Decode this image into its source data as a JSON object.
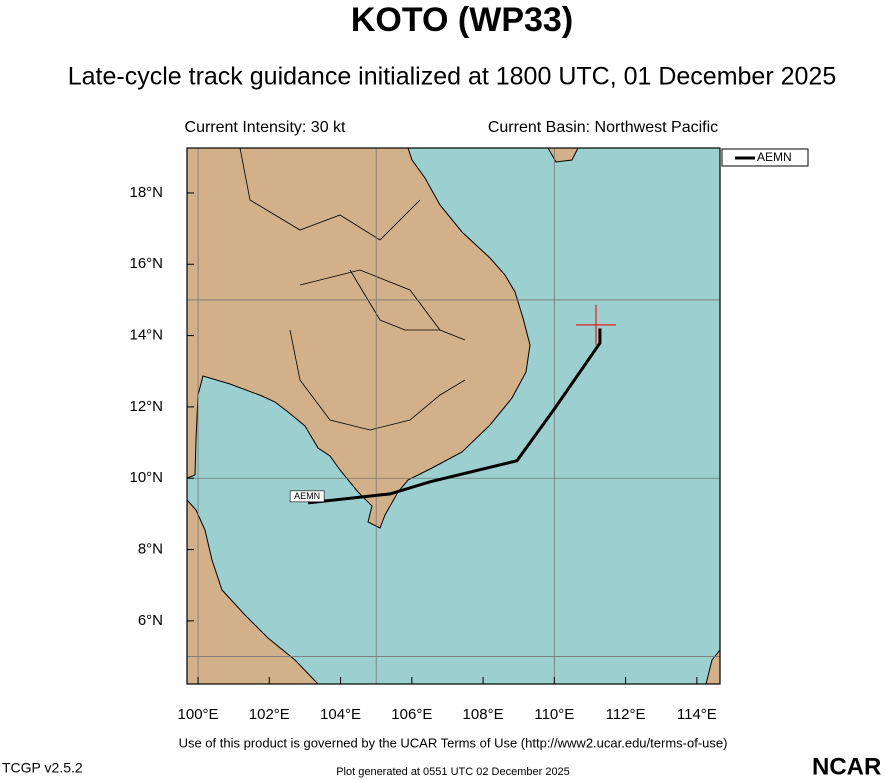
{
  "header": {
    "title": "KOTO (WP33)",
    "subtitle": "Late-cycle track guidance initialized at 1800 UTC, 01 December 2025"
  },
  "info": {
    "intensity": "Current Intensity: 30 kt",
    "basin": "Current Basin: Northwest Pacific"
  },
  "map": {
    "lon_range": [
      99.69,
      114.65
    ],
    "lat_range": [
      4.23,
      19.26
    ],
    "lon_ticks": [
      {
        "value": 100,
        "label": "100°E"
      },
      {
        "value": 102,
        "label": "102°E"
      },
      {
        "value": 104,
        "label": "104°E"
      },
      {
        "value": 106,
        "label": "106°E"
      },
      {
        "value": 108,
        "label": "108°E"
      },
      {
        "value": 110,
        "label": "110°E"
      },
      {
        "value": 112,
        "label": "112°E"
      },
      {
        "value": 114,
        "label": "114°E"
      }
    ],
    "lat_ticks": [
      {
        "value": 6,
        "label": "6°N"
      },
      {
        "value": 8,
        "label": "8°N"
      },
      {
        "value": 10,
        "label": "10°N"
      },
      {
        "value": 12,
        "label": "12°N"
      },
      {
        "value": 14,
        "label": "14°N"
      },
      {
        "value": 16,
        "label": "16°N"
      },
      {
        "value": 18,
        "label": "18°N"
      }
    ],
    "lon_grid": [
      100,
      105,
      110
    ],
    "lat_grid": [
      5,
      10,
      15
    ],
    "track": {
      "name": "AEMN",
      "lon": [
        103.09,
        105.39,
        106.51,
        108.95,
        110.02,
        111.28,
        111.28
      ],
      "lat": [
        9.31,
        9.56,
        9.9,
        10.49,
        11.97,
        13.79,
        14.2
      ]
    },
    "current_position": {
      "lon": 111.17,
      "lat": 14.3
    },
    "legend": "AEMN"
  },
  "footer": {
    "terms": "Use of this product is governed by the UCAR Terms of Use (http://www2.ucar.edu/terms-of-use)",
    "version": "TCGP v2.5.2",
    "generated": "Plot generated at 0551 UTC   02 December 2025",
    "logo": "NCAR"
  }
}
